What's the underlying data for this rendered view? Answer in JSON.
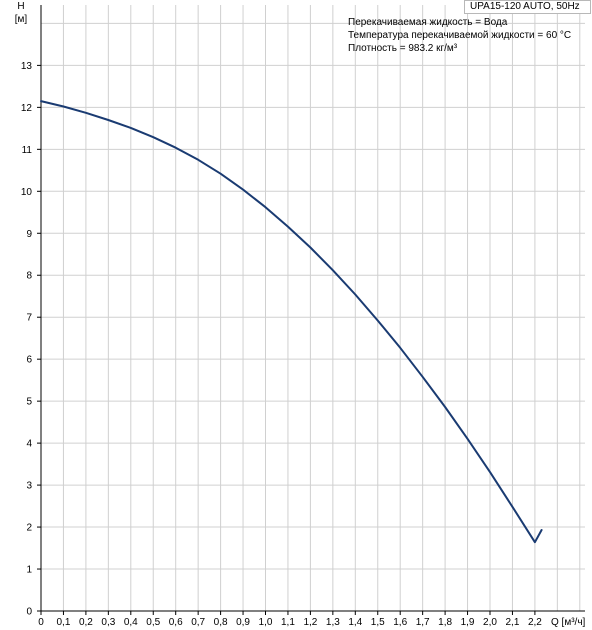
{
  "chart_data": {
    "type": "line",
    "title": "UPA15-120 AUTO, 50Hz",
    "notes": [
      "Перекачиваемая жидкость = Вода",
      "Температура перекачиваемой жидкости = 60 °C",
      "Плотность = 983.2 кг/м³"
    ],
    "ylabel_top": "H",
    "ylabel_unit": "[м]",
    "xlabel": "Q [м³/ч]",
    "xlim": [
      0,
      2.4
    ],
    "ylim": [
      0,
      14
    ],
    "x_ticks": [
      "0",
      "0,1",
      "0,2",
      "0,3",
      "0,4",
      "0,5",
      "0,6",
      "0,7",
      "0,8",
      "0,9",
      "1,0",
      "1,1",
      "1,2",
      "1,3",
      "1,4",
      "1,5",
      "1,6",
      "1,7",
      "1,8",
      "1,9",
      "2,0",
      "2,1",
      "2,2"
    ],
    "y_ticks": [
      "0",
      "1",
      "2",
      "3",
      "4",
      "5",
      "6",
      "7",
      "8",
      "9",
      "10",
      "11",
      "12",
      "13"
    ],
    "grid": true,
    "series": [
      {
        "color": "#1a3b72",
        "x": [
          0,
          0.1,
          0.2,
          0.3,
          0.4,
          0.5,
          0.6,
          0.7,
          0.8,
          0.9,
          1.0,
          1.1,
          1.2,
          1.3,
          1.4,
          1.5,
          1.6,
          1.7,
          1.8,
          1.9,
          2.0,
          2.1,
          2.2,
          2.23
        ],
        "y": [
          12.15,
          12.02,
          11.87,
          11.7,
          11.51,
          11.29,
          11.04,
          10.75,
          10.42,
          10.04,
          9.62,
          9.16,
          8.66,
          8.12,
          7.54,
          6.92,
          6.27,
          5.58,
          4.86,
          4.1,
          3.31,
          2.48,
          1.64,
          1.93
        ]
      }
    ]
  }
}
